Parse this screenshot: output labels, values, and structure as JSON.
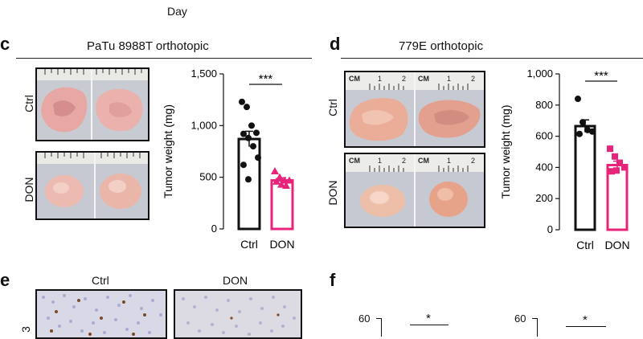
{
  "top": {
    "axis_label": "Day"
  },
  "panel_c": {
    "letter": "c",
    "title": "PaTu 8988T orthotopic",
    "row_labels": [
      "Ctrl",
      "DON"
    ],
    "chart_data": {
      "type": "bar",
      "categories": [
        "Ctrl",
        "DON"
      ],
      "values": [
        870,
        470
      ],
      "errors": [
        75,
        25
      ],
      "points": [
        [
          1230,
          1180,
          1000,
          930,
          920,
          880,
          800,
          690,
          620,
          480
        ],
        [
          560,
          500,
          470,
          470,
          460,
          430,
          420
        ]
      ],
      "point_markers": [
        "circle",
        "triangle"
      ],
      "ylabel": "Tumor weight (mg)",
      "ylim": [
        0,
        1500
      ],
      "yticks": [
        0,
        500,
        1000,
        1500
      ],
      "ytick_labels": [
        "0",
        "500",
        "1,000",
        "1,500"
      ],
      "significance": "***",
      "colors": [
        "#111111",
        "#e8237a"
      ]
    }
  },
  "panel_d": {
    "letter": "d",
    "title": "779E orthotopic",
    "row_labels": [
      "Ctrl",
      "DON"
    ],
    "ruler_texts": [
      "CM",
      "1",
      "2",
      "CM",
      "1",
      "2",
      "CM",
      "1",
      "2",
      "CM",
      "1",
      "2"
    ],
    "chart_data": {
      "type": "bar",
      "categories": [
        "Ctrl",
        "DON"
      ],
      "values": [
        665,
        415
      ],
      "errors": [
        40,
        25
      ],
      "points": [
        [
          840,
          690,
          640,
          630,
          615
        ],
        [
          520,
          470,
          430,
          400,
          375,
          380
        ]
      ],
      "point_markers": [
        "circle",
        "square"
      ],
      "ylabel": "Tumor weight (mg)",
      "ylim": [
        0,
        1000
      ],
      "yticks": [
        0,
        200,
        400,
        600,
        800,
        1000
      ],
      "ytick_labels": [
        "0",
        "200",
        "400",
        "600",
        "800",
        "1,000"
      ],
      "significance": "***",
      "colors": [
        "#111111",
        "#e8237a"
      ]
    }
  },
  "panel_e": {
    "letter": "e",
    "column_labels": [
      "Ctrl",
      "DON"
    ],
    "side_label": "3"
  },
  "panel_f": {
    "letter": "f",
    "charts": [
      {
        "ytick_top": "60",
        "significance": "*"
      },
      {
        "ytick_top": "60",
        "significance": "*"
      }
    ]
  }
}
